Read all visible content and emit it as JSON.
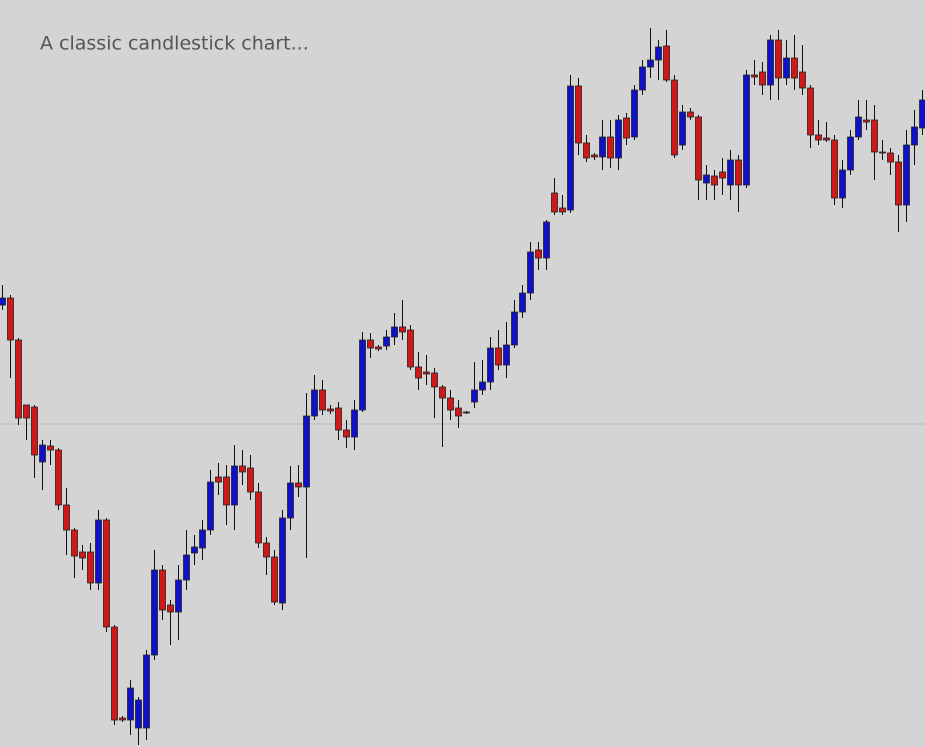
{
  "chart_data": {
    "type": "candlestick",
    "title": "A classic candlestick chart...",
    "ylim": [
      0,
      747
    ],
    "up_color": "#1010c8",
    "down_color": "#d01818",
    "reference_line": 323,
    "open": [
      442,
      449,
      407,
      342,
      340,
      285,
      301,
      297,
      242,
      217,
      195,
      195,
      164,
      227,
      120,
      29,
      27,
      19,
      19,
      92,
      177,
      142,
      135,
      167,
      194,
      199,
      217,
      270,
      270,
      242,
      281,
      279,
      255,
      204,
      190,
      144,
      229,
      264,
      260,
      331,
      357,
      338,
      339,
      317,
      310,
      337,
      407,
      400,
      401,
      410,
      420,
      417,
      380,
      375,
      374,
      360,
      349,
      339,
      335,
      345,
      357,
      365,
      399,
      382,
      402,
      435,
      454,
      497,
      489,
      554,
      539,
      537,
      661,
      604,
      592,
      590,
      610,
      589,
      629,
      610,
      657,
      680,
      687,
      701,
      667,
      602,
      635,
      630,
      564,
      571,
      575,
      562,
      587,
      562,
      672,
      675,
      662,
      707,
      669,
      689,
      675,
      659,
      612,
      609,
      607,
      549,
      577,
      610,
      627,
      627,
      595,
      594,
      585,
      542,
      602,
      619
    ],
    "high": [
      462,
      452,
      409,
      342,
      342,
      307,
      307,
      299,
      259,
      219,
      202,
      204,
      237,
      229,
      122,
      31,
      67,
      50,
      97,
      197,
      182,
      147,
      182,
      217,
      212,
      227,
      277,
      284,
      282,
      302,
      297,
      292,
      264,
      210,
      197,
      237,
      281,
      282,
      354,
      372,
      367,
      342,
      345,
      327,
      347,
      415,
      414,
      402,
      417,
      434,
      447,
      422,
      395,
      392,
      379,
      362,
      357,
      347,
      336,
      385,
      387,
      410,
      417,
      425,
      447,
      462,
      505,
      505,
      527,
      569,
      552,
      672,
      669,
      612,
      594,
      627,
      627,
      632,
      634,
      662,
      687,
      719,
      707,
      717,
      672,
      642,
      639,
      632,
      582,
      577,
      589,
      597,
      592,
      677,
      687,
      685,
      712,
      717,
      707,
      712,
      702,
      662,
      627,
      625,
      612,
      587,
      617,
      647,
      647,
      642,
      607,
      599,
      592,
      617,
      637,
      657
    ],
    "low": [
      437,
      369,
      322,
      307,
      269,
      257,
      282,
      237,
      192,
      169,
      177,
      157,
      157,
      115,
      22,
      25,
      12,
      2,
      7,
      87,
      127,
      102,
      107,
      157,
      182,
      187,
      212,
      252,
      222,
      217,
      262,
      247,
      199,
      172,
      142,
      137,
      217,
      250,
      189,
      327,
      332,
      333,
      307,
      299,
      297,
      335,
      389,
      396,
      397,
      402,
      407,
      377,
      357,
      362,
      329,
      300,
      327,
      319,
      333,
      339,
      352,
      357,
      377,
      369,
      399,
      429,
      447,
      477,
      477,
      532,
      532,
      534,
      592,
      585,
      587,
      577,
      579,
      577,
      602,
      607,
      652,
      669,
      667,
      665,
      589,
      597,
      627,
      547,
      547,
      547,
      552,
      547,
      535,
      559,
      662,
      652,
      647,
      647,
      662,
      657,
      652,
      599,
      602,
      605,
      542,
      539,
      572,
      607,
      617,
      567,
      587,
      572,
      515,
      525,
      582,
      612
    ],
    "close": [
      449,
      407,
      329,
      329,
      292,
      302,
      297,
      242,
      217,
      191,
      189,
      164,
      227,
      120,
      27,
      27,
      59,
      47,
      92,
      177,
      137,
      135,
      167,
      192,
      200,
      217,
      265,
      265,
      242,
      281,
      275,
      255,
      204,
      190,
      145,
      229,
      264,
      260,
      331,
      357,
      337,
      336,
      317,
      310,
      337,
      407,
      399,
      398,
      410,
      420,
      415,
      380,
      369,
      373,
      360,
      349,
      337,
      331,
      334,
      357,
      365,
      399,
      382,
      402,
      435,
      454,
      495,
      489,
      525,
      535,
      535,
      661,
      604,
      589,
      590,
      610,
      589,
      627,
      609,
      657,
      680,
      687,
      700,
      667,
      592,
      635,
      630,
      567,
      572,
      562,
      569,
      587,
      562,
      672,
      670,
      662,
      707,
      669,
      689,
      669,
      659,
      612,
      607,
      607,
      549,
      577,
      610,
      630,
      625,
      595,
      594,
      585,
      542,
      602,
      620,
      647
    ]
  }
}
